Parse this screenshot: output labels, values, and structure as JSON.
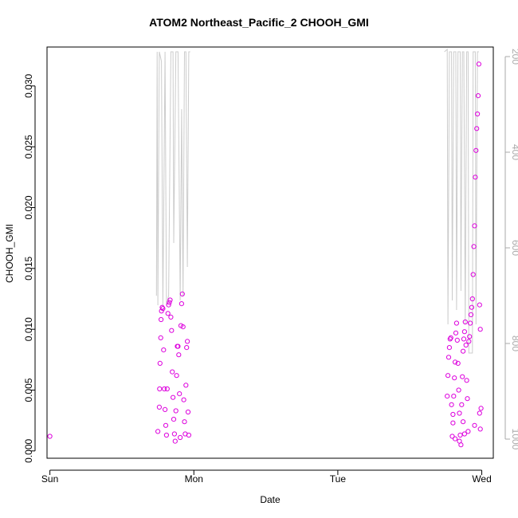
{
  "chart_data": {
    "type": "scatter",
    "title": "ATOM2 Northeast_Pacific_2 CHOOH_GMI",
    "xlabel": "Date",
    "ylabel": "CHOOH_GMI",
    "x_ticks": [
      "Sun",
      "Mon",
      "Tue",
      "Wed"
    ],
    "xlim": [
      -0.02,
      3.08
    ],
    "ylim": [
      -0.0006,
      0.0332
    ],
    "y_ticks": [
      0.0,
      0.005,
      0.01,
      0.015,
      0.02,
      0.025,
      0.03
    ],
    "y_tick_labels": [
      "0.000",
      "0.005",
      "0.010",
      "0.015",
      "0.020",
      "0.025",
      "0.030"
    ],
    "y2_ticks": [
      200,
      400,
      600,
      800,
      1000
    ],
    "y2_lim": [
      1040,
      180
    ],
    "series": [
      {
        "marker": "open-circle",
        "color": "#dd00dd",
        "points": [
          [
            0.0,
            0.0012
          ],
          [
            0.75,
            0.0016
          ],
          [
            0.76,
            0.0036
          ],
          [
            0.762,
            0.0051
          ],
          [
            0.765,
            0.0072
          ],
          [
            0.77,
            0.0093
          ],
          [
            0.772,
            0.0108
          ],
          [
            0.775,
            0.0115
          ],
          [
            0.78,
            0.0118
          ],
          [
            0.785,
            0.0117
          ],
          [
            0.79,
            0.0083
          ],
          [
            0.795,
            0.0051
          ],
          [
            0.8,
            0.0034
          ],
          [
            0.805,
            0.0021
          ],
          [
            0.81,
            0.0013
          ],
          [
            0.815,
            0.0051
          ],
          [
            0.82,
            0.0113
          ],
          [
            0.825,
            0.012
          ],
          [
            0.83,
            0.0122
          ],
          [
            0.835,
            0.0124
          ],
          [
            0.84,
            0.011
          ],
          [
            0.845,
            0.0099
          ],
          [
            0.85,
            0.0065
          ],
          [
            0.855,
            0.0044
          ],
          [
            0.86,
            0.0026
          ],
          [
            0.865,
            0.0014
          ],
          [
            0.87,
            0.0008
          ],
          [
            0.875,
            0.0033
          ],
          [
            0.88,
            0.0062
          ],
          [
            0.885,
            0.0086
          ],
          [
            0.89,
            0.0086
          ],
          [
            0.895,
            0.0079
          ],
          [
            0.9,
            0.0047
          ],
          [
            0.905,
            0.0011
          ],
          [
            0.91,
            0.0103
          ],
          [
            0.915,
            0.0121
          ],
          [
            0.92,
            0.0129
          ],
          [
            0.925,
            0.0102
          ],
          [
            0.93,
            0.0042
          ],
          [
            0.935,
            0.0024
          ],
          [
            0.94,
            0.0014
          ],
          [
            0.945,
            0.0054
          ],
          [
            0.95,
            0.0085
          ],
          [
            0.955,
            0.009
          ],
          [
            0.96,
            0.0032
          ],
          [
            0.965,
            0.0013
          ],
          [
            2.76,
            0.0045
          ],
          [
            2.765,
            0.0062
          ],
          [
            2.77,
            0.0077
          ],
          [
            2.775,
            0.0085
          ],
          [
            2.78,
            0.0092
          ],
          [
            2.785,
            0.0093
          ],
          [
            2.79,
            0.0038
          ],
          [
            2.795,
            0.0012
          ],
          [
            2.8,
            0.003
          ],
          [
            2.805,
            0.0045
          ],
          [
            2.81,
            0.006
          ],
          [
            2.815,
            0.0073
          ],
          [
            2.82,
            0.0097
          ],
          [
            2.825,
            0.0105
          ],
          [
            2.83,
            0.0091
          ],
          [
            2.835,
            0.0072
          ],
          [
            2.84,
            0.005
          ],
          [
            2.845,
            0.0031
          ],
          [
            2.85,
            0.0013
          ],
          [
            2.855,
            0.0005
          ],
          [
            2.86,
            0.0038
          ],
          [
            2.865,
            0.0061
          ],
          [
            2.87,
            0.0082
          ],
          [
            2.875,
            0.0092
          ],
          [
            2.88,
            0.0098
          ],
          [
            2.885,
            0.0106
          ],
          [
            2.89,
            0.0087
          ],
          [
            2.895,
            0.0058
          ],
          [
            2.9,
            0.0043
          ],
          [
            2.905,
            0.0016
          ],
          [
            2.91,
            0.009
          ],
          [
            2.915,
            0.0094
          ],
          [
            2.92,
            0.0105
          ],
          [
            2.925,
            0.0112
          ],
          [
            2.93,
            0.0118
          ],
          [
            2.935,
            0.0125
          ],
          [
            2.94,
            0.0145
          ],
          [
            2.945,
            0.0168
          ],
          [
            2.95,
            0.0185
          ],
          [
            2.955,
            0.0225
          ],
          [
            2.96,
            0.0247
          ],
          [
            2.965,
            0.0265
          ],
          [
            2.97,
            0.0277
          ],
          [
            2.975,
            0.0292
          ],
          [
            2.98,
            0.0318
          ],
          [
            2.985,
            0.012
          ],
          [
            2.99,
            0.01
          ],
          [
            2.995,
            0.0035
          ],
          [
            2.99,
            0.0018
          ],
          [
            2.985,
            0.0031
          ],
          [
            2.95,
            0.0021
          ],
          [
            2.87,
            0.0024
          ],
          [
            2.88,
            0.0014
          ],
          [
            2.8,
            0.0023
          ],
          [
            2.815,
            0.001
          ],
          [
            2.845,
            0.0008
          ]
        ]
      }
    ],
    "secondary_line": {
      "color": "#cccccc",
      "axis": "right",
      "segments": [
        [
          [
            0.74,
            700
          ],
          [
            0.745,
            190
          ],
          [
            0.75,
            720
          ],
          [
            0.76,
            190
          ],
          [
            0.775,
            210
          ],
          [
            0.785,
            720
          ],
          [
            0.8,
            190
          ],
          [
            0.81,
            720
          ],
          [
            0.825,
            700
          ],
          [
            0.84,
            190
          ],
          [
            0.855,
            190
          ],
          [
            0.86,
            590
          ],
          [
            0.875,
            190
          ],
          [
            0.89,
            190
          ],
          [
            0.905,
            710
          ],
          [
            0.915,
            310
          ],
          [
            0.925,
            700
          ],
          [
            0.935,
            190
          ],
          [
            0.945,
            190
          ],
          [
            0.955,
            640
          ],
          [
            0.965,
            190
          ],
          [
            0.975,
            190
          ]
        ],
        [
          [
            2.74,
            190
          ],
          [
            2.76,
            185
          ],
          [
            2.765,
            760
          ],
          [
            2.775,
            190
          ],
          [
            2.79,
            190
          ],
          [
            2.795,
            710
          ],
          [
            2.805,
            190
          ],
          [
            2.82,
            190
          ],
          [
            2.825,
            730
          ],
          [
            2.835,
            190
          ],
          [
            2.85,
            190
          ],
          [
            2.855,
            690
          ],
          [
            2.865,
            190
          ],
          [
            2.875,
            190
          ],
          [
            2.885,
            760
          ],
          [
            2.895,
            190
          ],
          [
            2.905,
            190
          ],
          [
            2.91,
            820
          ],
          [
            2.935,
            820
          ],
          [
            2.94,
            190
          ],
          [
            2.955,
            190
          ],
          [
            2.96,
            760
          ],
          [
            2.97,
            190
          ],
          [
            2.98,
            190
          ]
        ]
      ]
    }
  }
}
